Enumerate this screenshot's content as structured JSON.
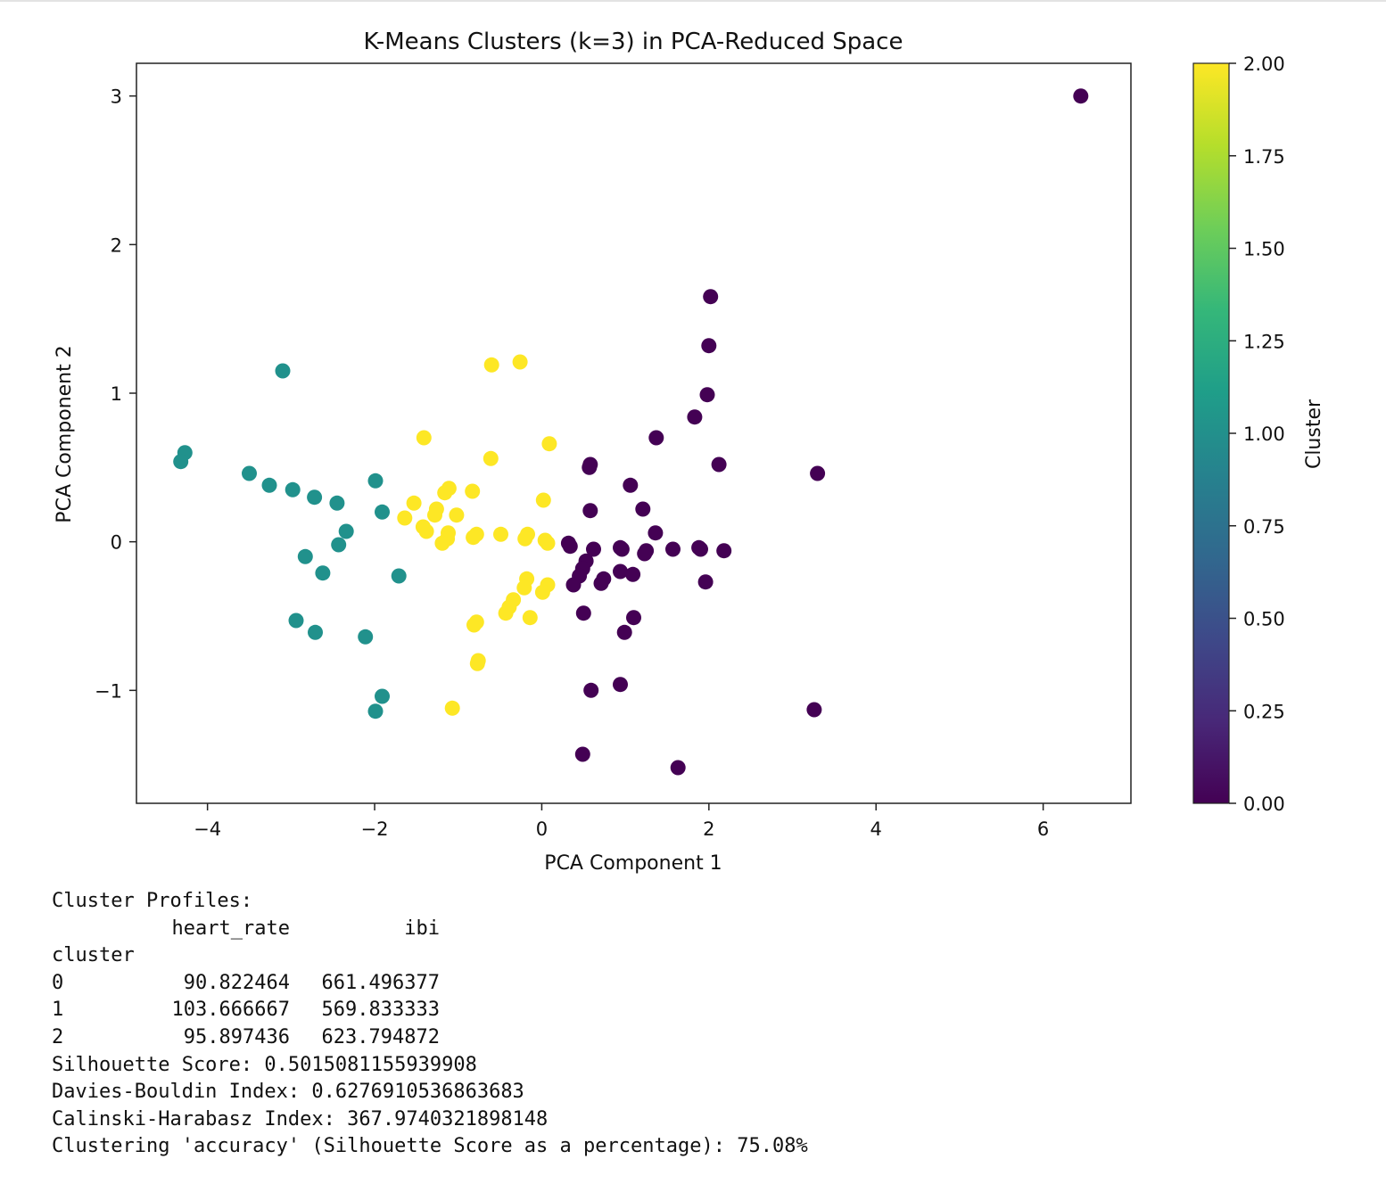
{
  "chart_data": {
    "type": "scatter",
    "title": "K-Means Clusters (k=3) in PCA-Reduced Space",
    "xlabel": "PCA Component 1",
    "ylabel": "PCA Component 2",
    "xlim": [
      -4.85,
      7.05
    ],
    "ylim": [
      -1.76,
      3.22
    ],
    "xticks": [
      -4,
      -2,
      0,
      2,
      4,
      6
    ],
    "xtick_labels": [
      "−4",
      "−2",
      "0",
      "2",
      "4",
      "6"
    ],
    "yticks": [
      -1,
      0,
      1,
      2,
      3
    ],
    "ytick_labels": [
      "−1",
      "0",
      "1",
      "2",
      "3"
    ],
    "grid": false,
    "colormap": "viridis",
    "colorbar": {
      "label": "Cluster",
      "range": [
        0,
        2
      ],
      "ticks": [
        0,
        0.25,
        0.5,
        0.75,
        1.0,
        1.25,
        1.5,
        1.75,
        2.0
      ],
      "tick_labels": [
        "0.00",
        "0.25",
        "0.50",
        "0.75",
        "1.00",
        "1.25",
        "1.50",
        "1.75",
        "2.00"
      ],
      "stops": [
        "#440154",
        "#482878",
        "#3e4989",
        "#31688e",
        "#26828e",
        "#1f9e89",
        "#35b779",
        "#6ece58",
        "#b5de2b",
        "#fde725"
      ]
    },
    "cluster_colors": [
      "#440154",
      "#21918c",
      "#fde725"
    ],
    "series": [
      {
        "cluster": 0,
        "points": [
          [
            6.45,
            3.0
          ],
          [
            2.02,
            1.65
          ],
          [
            2.0,
            1.32
          ],
          [
            1.98,
            0.99
          ],
          [
            1.83,
            0.84
          ],
          [
            1.37,
            0.7
          ],
          [
            2.12,
            0.52
          ],
          [
            3.3,
            0.46
          ],
          [
            0.58,
            0.52
          ],
          [
            0.57,
            0.5
          ],
          [
            1.06,
            0.38
          ],
          [
            0.58,
            0.21
          ],
          [
            1.21,
            0.22
          ],
          [
            1.36,
            0.06
          ],
          [
            0.32,
            -0.01
          ],
          [
            0.34,
            -0.03
          ],
          [
            0.62,
            -0.05
          ],
          [
            0.94,
            -0.04
          ],
          [
            0.96,
            -0.05
          ],
          [
            1.25,
            -0.06
          ],
          [
            1.23,
            -0.08
          ],
          [
            1.57,
            -0.05
          ],
          [
            1.88,
            -0.04
          ],
          [
            1.9,
            -0.05
          ],
          [
            2.18,
            -0.06
          ],
          [
            0.53,
            -0.13
          ],
          [
            0.49,
            -0.18
          ],
          [
            0.45,
            -0.23
          ],
          [
            0.38,
            -0.29
          ],
          [
            0.94,
            -0.2
          ],
          [
            1.09,
            -0.22
          ],
          [
            0.74,
            -0.25
          ],
          [
            0.71,
            -0.28
          ],
          [
            1.96,
            -0.27
          ],
          [
            0.5,
            -0.48
          ],
          [
            1.1,
            -0.51
          ],
          [
            0.99,
            -0.61
          ],
          [
            0.59,
            -1.0
          ],
          [
            0.94,
            -0.96
          ],
          [
            3.26,
            -1.13
          ],
          [
            0.49,
            -1.43
          ],
          [
            1.63,
            -1.52
          ]
        ]
      },
      {
        "cluster": 1,
        "points": [
          [
            -3.1,
            1.15
          ],
          [
            -4.27,
            0.6
          ],
          [
            -4.32,
            0.54
          ],
          [
            -3.5,
            0.46
          ],
          [
            -3.26,
            0.38
          ],
          [
            -2.98,
            0.35
          ],
          [
            -2.72,
            0.3
          ],
          [
            -2.45,
            0.26
          ],
          [
            -1.99,
            0.41
          ],
          [
            -1.91,
            0.2
          ],
          [
            -2.34,
            0.07
          ],
          [
            -2.43,
            -0.02
          ],
          [
            -2.83,
            -0.1
          ],
          [
            -2.62,
            -0.21
          ],
          [
            -1.71,
            -0.23
          ],
          [
            -2.94,
            -0.53
          ],
          [
            -2.71,
            -0.61
          ],
          [
            -2.11,
            -0.64
          ],
          [
            -1.91,
            -1.04
          ],
          [
            -1.99,
            -1.14
          ]
        ]
      },
      {
        "cluster": 2,
        "points": [
          [
            -0.6,
            1.19
          ],
          [
            -0.26,
            1.21
          ],
          [
            -1.41,
            0.7
          ],
          [
            0.09,
            0.66
          ],
          [
            -0.61,
            0.56
          ],
          [
            -1.11,
            0.36
          ],
          [
            -1.16,
            0.33
          ],
          [
            -0.83,
            0.34
          ],
          [
            -1.53,
            0.26
          ],
          [
            -1.26,
            0.22
          ],
          [
            -1.28,
            0.18
          ],
          [
            -1.02,
            0.18
          ],
          [
            -1.64,
            0.16
          ],
          [
            0.02,
            0.28
          ],
          [
            -1.42,
            0.1
          ],
          [
            -1.38,
            0.07
          ],
          [
            -1.12,
            0.06
          ],
          [
            -1.13,
            0.02
          ],
          [
            -1.19,
            -0.01
          ],
          [
            -0.78,
            0.05
          ],
          [
            -0.82,
            0.03
          ],
          [
            -0.49,
            0.05
          ],
          [
            -0.17,
            0.05
          ],
          [
            -0.2,
            0.02
          ],
          [
            0.04,
            0.01
          ],
          [
            0.07,
            -0.01
          ],
          [
            0.07,
            -0.29
          ],
          [
            0.01,
            -0.34
          ],
          [
            -0.18,
            -0.25
          ],
          [
            -0.21,
            -0.31
          ],
          [
            -0.34,
            -0.39
          ],
          [
            -0.39,
            -0.44
          ],
          [
            -0.43,
            -0.48
          ],
          [
            -0.78,
            -0.54
          ],
          [
            -0.81,
            -0.56
          ],
          [
            -0.14,
            -0.51
          ],
          [
            -0.76,
            -0.8
          ],
          [
            -0.77,
            -0.82
          ],
          [
            -1.07,
            -1.12
          ]
        ]
      }
    ]
  },
  "output": {
    "heading": "Cluster Profiles:",
    "columns": [
      "heart_rate",
      "ibi"
    ],
    "index_name": "cluster",
    "rows": [
      {
        "cluster": "0",
        "heart_rate": "90.822464",
        "ibi": "661.496377"
      },
      {
        "cluster": "1",
        "heart_rate": "103.666667",
        "ibi": "569.833333"
      },
      {
        "cluster": "2",
        "heart_rate": "95.897436",
        "ibi": "623.794872"
      }
    ],
    "silhouette": "Silhouette Score: 0.5015081155939908",
    "davies_bouldin": "Davies-Bouldin Index: 0.6276910536863683",
    "calinski": "Calinski-Harabasz Index: 367.9740321898148",
    "accuracy": "Clustering 'accuracy' (Silhouette Score as a percentage): 75.08%"
  }
}
